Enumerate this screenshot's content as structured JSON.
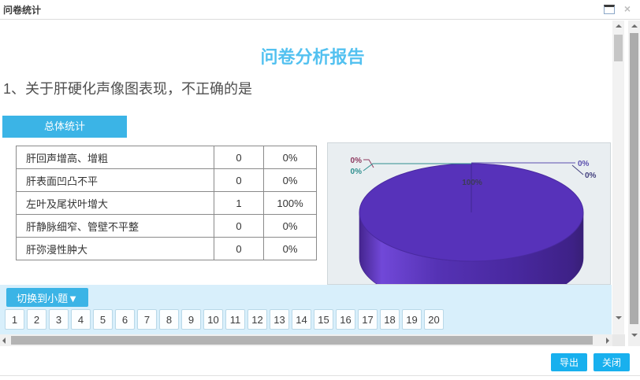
{
  "window": {
    "title": "问卷统计"
  },
  "report": {
    "title": "问卷分析报告",
    "question": "1、关于肝硬化声像图表现，不正确的是",
    "tab_label": "总体统计"
  },
  "table": {
    "rows": [
      {
        "option": "肝回声增高、增粗",
        "count": "0",
        "percent": "0%"
      },
      {
        "option": "肝表面凹凸不平",
        "count": "0",
        "percent": "0%"
      },
      {
        "option": "左叶及尾状叶增大",
        "count": "1",
        "percent": "100%"
      },
      {
        "option": "肝静脉细窄、管壁不平整",
        "count": "0",
        "percent": "0%"
      },
      {
        "option": "肝弥漫性肿大",
        "count": "0",
        "percent": "0%"
      }
    ]
  },
  "chart_data": {
    "type": "pie",
    "style": "3d",
    "title": "",
    "legend": "off",
    "categories": [
      "肝回声增高、增粗",
      "肝表面凹凸不平",
      "左叶及尾状叶增大",
      "肝静脉细窄、管壁不平整",
      "肝弥漫性肿大"
    ],
    "values": [
      0,
      0,
      1,
      0,
      0
    ],
    "percent_labels": [
      "0%",
      "0%",
      "100%",
      "0%",
      "0%"
    ],
    "slice_color": "#5732ba",
    "slice_side_dark": "#44268f",
    "label_colors": [
      "#8e3a60",
      "#2e8f8f",
      "#3c3c55",
      "#5a4fae",
      "#43407e"
    ]
  },
  "pager": {
    "switch_label": "切换到小题▼",
    "numbers": [
      "1",
      "2",
      "3",
      "4",
      "5",
      "6",
      "7",
      "8",
      "9",
      "10",
      "11",
      "12",
      "13",
      "14",
      "15",
      "16",
      "17",
      "18",
      "19",
      "20"
    ]
  },
  "footer": {
    "export_label": "导出",
    "close_label": "关闭"
  },
  "colors": {
    "accent_blue": "#3bb4e6",
    "button_blue": "#18b0ee",
    "title_blue": "#53c1f0",
    "pager_bg": "#d8effb"
  }
}
